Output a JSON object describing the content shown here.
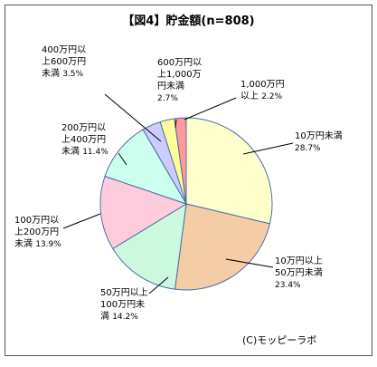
{
  "chart_data": {
    "type": "pie",
    "title": "【図4】貯金額(n=808)",
    "start_angle_deg": -90,
    "direction": "clockwise",
    "slices": [
      {
        "label": [
          "10万円未満"
        ],
        "pct_text": "28.7%",
        "value": 28.7,
        "color": "#ffffcc"
      },
      {
        "label": [
          "10万円以上",
          "50万円未満"
        ],
        "pct_text": "23.4%",
        "value": 23.4,
        "color": "#f4cca6"
      },
      {
        "label": [
          "50万円以上",
          "100万円未"
        ],
        "last_line": "満",
        "pct_text": "14.2%",
        "value": 14.2,
        "color": "#ccf8e0"
      },
      {
        "label": [
          "100万円以",
          "上200万円"
        ],
        "last_line": "未満",
        "pct_text": "13.9%",
        "value": 13.9,
        "color": "#ffccdd"
      },
      {
        "label": [
          "200万円以",
          "上400万円"
        ],
        "last_line": "未満",
        "pct_text": "11.4%",
        "value": 11.4,
        "color": "#ccffee"
      },
      {
        "label": [
          "400万円以",
          "上600万円"
        ],
        "last_line": "未満",
        "pct_text": "3.5%",
        "value": 3.5,
        "color": "#ccccff"
      },
      {
        "label": [
          "600万円以",
          "上1,000万",
          "円未満"
        ],
        "pct_text": "2.7%",
        "value": 2.7,
        "color": "#ffff99"
      },
      {
        "label": [
          "1,000万円"
        ],
        "last_line": "以上",
        "pct_text": "2.2%",
        "value": 2.2,
        "color": "#ff9999"
      }
    ]
  },
  "credit": "(C)モッピーラボ"
}
